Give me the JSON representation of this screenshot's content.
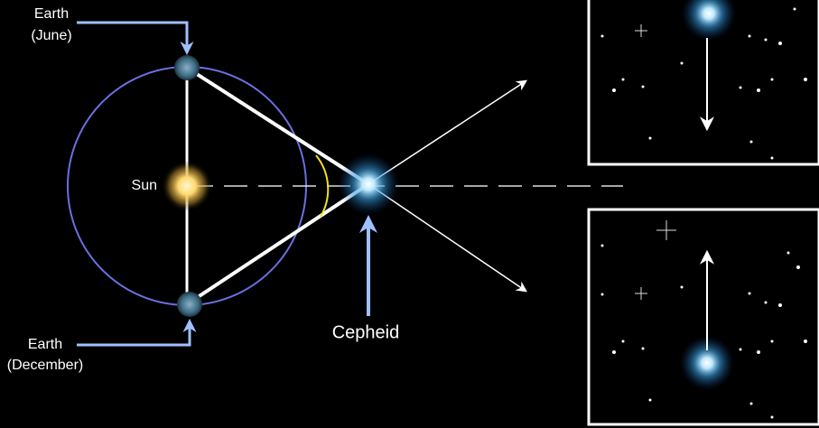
{
  "labels": {
    "earth_june": [
      "Earth",
      "(June)"
    ],
    "sun": "Sun",
    "earth_december": [
      "Earth",
      "(December)"
    ],
    "cepheid": "Cepheid"
  }
}
